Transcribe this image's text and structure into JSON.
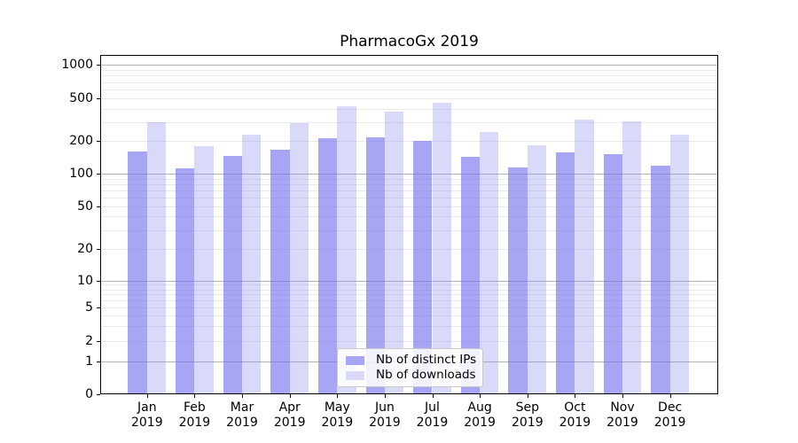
{
  "chart_data": {
    "type": "bar",
    "title": "PharmacoGx 2019",
    "categories": [
      "Jan",
      "Feb",
      "Mar",
      "Apr",
      "May",
      "Jun",
      "Jul",
      "Aug",
      "Sep",
      "Oct",
      "Nov",
      "Dec"
    ],
    "year": "2019",
    "series": [
      {
        "name": "Nb of distinct IPs",
        "fill": "#7070ed",
        "fill_alpha": 0.62,
        "swatch_color": "#a6a6f4",
        "values": [
          160,
          112,
          145,
          165,
          210,
          216,
          200,
          142,
          113,
          157,
          152,
          119
        ]
      },
      {
        "name": "Nb of downloads",
        "fill": "#8888ec",
        "fill_alpha": 0.32,
        "swatch_color": "#d9d9f9",
        "values": [
          298,
          177,
          228,
          290,
          417,
          373,
          452,
          243,
          182,
          315,
          302,
          229
        ]
      }
    ],
    "yscale": "symlog",
    "ytick_labels": [
      "0",
      "1",
      "2",
      "5",
      "10",
      "20",
      "50",
      "100",
      "200",
      "500",
      "1000"
    ],
    "ytick_values": [
      0,
      1,
      2,
      5,
      10,
      20,
      50,
      100,
      200,
      500,
      1000
    ],
    "ylim": [
      0,
      1250
    ],
    "xlabel": "",
    "ylabel": "",
    "grid": "on",
    "legend_position": "lower center",
    "colors": {
      "major_grid": "#b4b4b4",
      "minor_grid": "#e9e9e9",
      "axis": "#000000",
      "background": "#ffffff"
    }
  }
}
